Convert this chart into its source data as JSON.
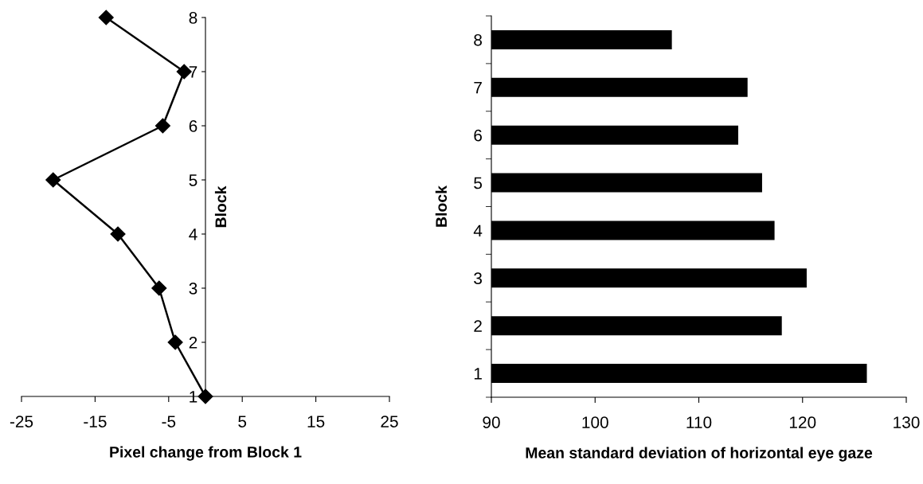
{
  "chart_data": [
    {
      "type": "line",
      "orientation": "horizontal",
      "categories": [
        "8",
        "7",
        "6",
        "5",
        "4",
        "3",
        "2",
        "1"
      ],
      "values": [
        -13.5,
        -2.9,
        -5.8,
        -20.7,
        -11.9,
        -6.3,
        -4.1,
        0
      ],
      "color": "#000000",
      "marker": "diamond",
      "line_style": "solid",
      "xlim": [
        -25,
        25
      ],
      "xticks": [
        -25,
        -15,
        -5,
        5,
        15,
        25
      ],
      "xlabel": "Pixel change from Block 1",
      "ylabel": "Block",
      "grid": false,
      "legend": false
    },
    {
      "type": "bar",
      "orientation": "horizontal",
      "categories": [
        "8",
        "7",
        "6",
        "5",
        "4",
        "3",
        "2",
        "1"
      ],
      "values": [
        107.4,
        114.7,
        113.8,
        116.1,
        117.3,
        120.4,
        118.0,
        126.2
      ],
      "color": "#000000",
      "xlim": [
        90,
        130
      ],
      "xticks": [
        90,
        100,
        110,
        120,
        130
      ],
      "xlabel": "Mean standard deviation of horizontal eye gaze",
      "ylabel": "Block",
      "grid": false,
      "legend": false
    }
  ]
}
